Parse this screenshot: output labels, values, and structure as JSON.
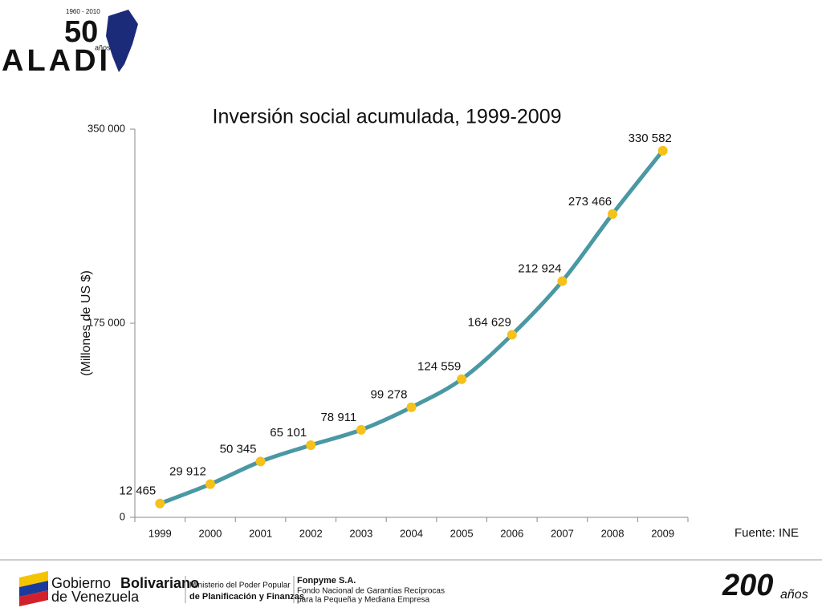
{
  "logo": {
    "name": "ALADI",
    "anniversary": "50",
    "years": "1960 - 2010",
    "caption": "años"
  },
  "chart_data": {
    "type": "line",
    "title": "Inversión social acumulada, 1999-2009",
    "y_label": "(Millones de US $)",
    "categories": [
      "1999",
      "2000",
      "2001",
      "2002",
      "2003",
      "2004",
      "2005",
      "2006",
      "2007",
      "2008",
      "2009"
    ],
    "series": [
      {
        "name": "Inversión social acumulada",
        "color": "#4a98a3",
        "marker_color": "#f5c11a",
        "values": [
          12465,
          29912,
          50345,
          65101,
          78911,
          99278,
          124559,
          164629,
          212924,
          273466,
          330582
        ],
        "value_labels": [
          "12 465",
          "29 912",
          "50 345",
          "65 101",
          "78 911",
          "99 278",
          "124 559",
          "164 629",
          "212 924",
          "273 466",
          "330 582"
        ]
      }
    ],
    "ylim": [
      0,
      350000
    ],
    "yticks": [
      0,
      {
        "value": 175000,
        "label": "175 000"
      },
      {
        "value": 350000,
        "label": "350 000"
      }
    ],
    "grid": false,
    "source": "Fuente: INE"
  },
  "footer": {
    "gov_1": "Gobierno",
    "gov_2": "Bolivariano",
    "gov_3": "de Venezuela",
    "ministry_1": "Ministerio del Poder Popular",
    "ministry_2": "de Planificación y Finanzas",
    "fonpyme_1": "Fonpyme S.A.",
    "fonpyme_2": "Fondo Nacional de Garantías Recíprocas",
    "fonpyme_3": "para la Pequeña y Mediana Empresa",
    "bicentennial_num": "200",
    "bicentennial_word": "años"
  }
}
